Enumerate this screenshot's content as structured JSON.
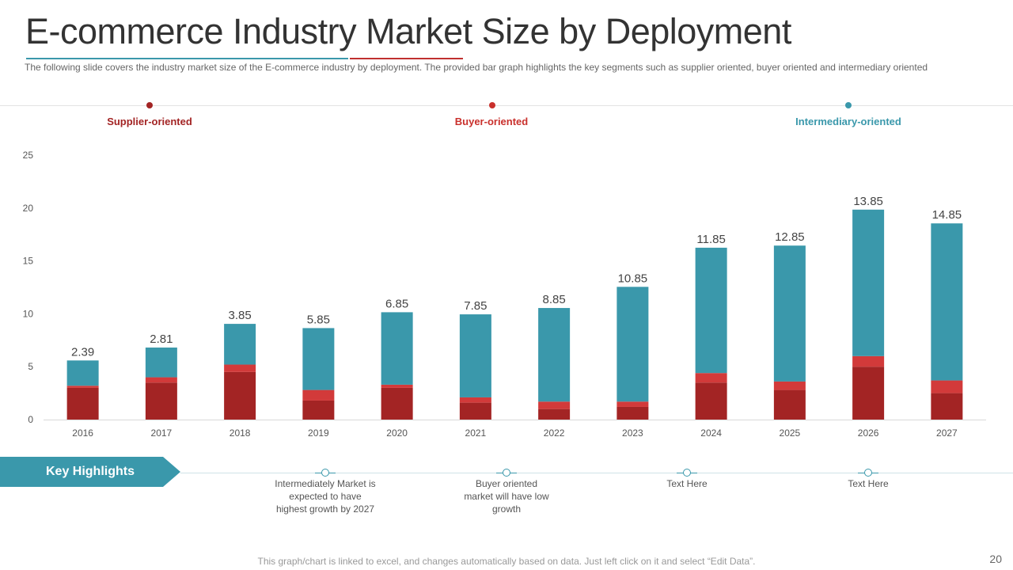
{
  "slide": {
    "title": "E-commerce Industry Market Size by Deployment",
    "subtitle": "The following  slide covers  the industry market size of the E-commerce  industry by deployment. The provided  bar graph highlights the key segments such as supplier oriented, buyer oriented and intermediary  oriented",
    "footer": "This graph/chart is linked to excel, and changes automatically based on data. Just left click on it and select “Edit Data”.",
    "page_number": "20"
  },
  "segments": [
    {
      "label": "Supplier-oriented",
      "color": "#a32424"
    },
    {
      "label": "Buyer-oriented",
      "color": "#c9302c"
    },
    {
      "label": "Intermediary-oriented",
      "color": "#3a98ab"
    }
  ],
  "highlights": {
    "label": "Key Highlights",
    "items": [
      "Intermediately Market is expected to have highest growth by 2027",
      "Buyer oriented market will have low growth",
      "Text Here",
      "Text Here"
    ]
  },
  "chart_data": {
    "type": "bar",
    "stacked": true,
    "categories": [
      "2016",
      "2017",
      "2018",
      "2019",
      "2020",
      "2021",
      "2022",
      "2023",
      "2024",
      "2025",
      "2026",
      "2027"
    ],
    "series": [
      {
        "name": "Supplier-oriented",
        "color": "#a32424",
        "values": [
          3,
          3.5,
          4.5,
          1.8,
          3,
          1.6,
          1,
          1.2,
          3.5,
          2.8,
          5,
          2.5
        ]
      },
      {
        "name": "Buyer-oriented",
        "color": "#d23a3a",
        "values": [
          0.2,
          0.5,
          0.7,
          1,
          0.3,
          0.5,
          0.7,
          0.5,
          0.9,
          0.8,
          1,
          1.2
        ]
      },
      {
        "name": "Intermediary-oriented",
        "color": "#3a98ab",
        "values": [
          2.39,
          2.81,
          3.85,
          5.85,
          6.85,
          7.85,
          8.85,
          10.85,
          11.85,
          12.85,
          13.85,
          14.85
        ]
      }
    ],
    "data_labels": [
      "2.39",
      "2.81",
      "3.85",
      "5.85",
      "6.85",
      "7.85",
      "8.85",
      "10.85",
      "11.85",
      "12.85",
      "13.85",
      "14.85"
    ],
    "y_ticks": [
      "0",
      "5",
      "10",
      "15",
      "20",
      "25"
    ],
    "ylim": [
      0,
      25
    ],
    "title": "",
    "xlabel": "",
    "ylabel": ""
  }
}
